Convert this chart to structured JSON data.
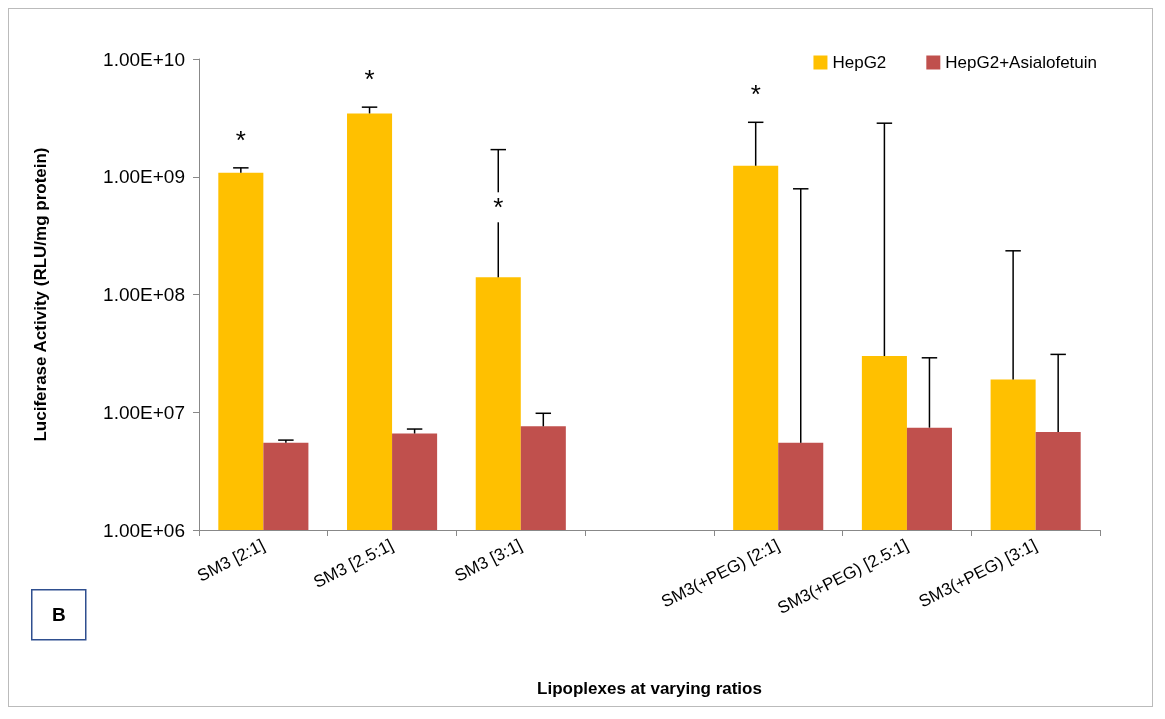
{
  "chart_data": {
    "type": "bar",
    "xlabel": "Lipoplexes at varying ratios",
    "ylabel": "Luciferase Activity (RLU/mg protein)",
    "categories": [
      "SM3 [2:1]",
      "SM3 [2.5:1]",
      "SM3 [3:1]",
      null,
      "SM3(+PEG) [2:1]",
      "SM3(+PEG) [2.5:1]",
      "SM3(+PEG) [3:1]"
    ],
    "series": [
      {
        "name": "HepG2",
        "color": "#ffc000",
        "values": [
          1080000000.0,
          3450000000.0,
          140000000.0,
          null,
          1240000000.0,
          30000000.0,
          19000000.0
        ],
        "errors": [
          [
            1080000000.0,
            1190000000.0
          ],
          [
            3450000000.0,
            3900000000.0
          ],
          [
            140000000.0,
            1700000000.0
          ],
          null,
          [
            1240000000.0,
            2900000000.0
          ],
          [
            30000000.0,
            2850000000.0
          ],
          [
            19000000.0,
            235000000.0
          ]
        ]
      },
      {
        "name": "HepG2+Asialofetuin",
        "color": "#c0504d",
        "values": [
          5500000.0,
          6600000.0,
          7600000.0,
          null,
          5500000.0,
          7400000.0,
          6800000.0
        ],
        "errors": [
          [
            5500000.0,
            5800000.0
          ],
          [
            6600000.0,
            7200000.0
          ],
          [
            7600000.0,
            9800000.0
          ],
          null,
          [
            5500000.0,
            790000000.0
          ],
          [
            7400000.0,
            29000000.0
          ],
          [
            6800000.0,
            31000000.0
          ]
        ]
      }
    ],
    "log": "y",
    "ylim": [
      1000000.0,
      10000000000.0
    ],
    "yticks": [
      {
        "value": 1000000.0,
        "label": "1.00E+06"
      },
      {
        "value": 10000000.0,
        "label": "1.00E+07"
      },
      {
        "value": 100000000.0,
        "label": "1.00E+08"
      },
      {
        "value": 1000000000.0,
        "label": "1.00E+09"
      },
      {
        "value": 10000000000.0,
        "label": "1.00E+10"
      }
    ],
    "grid": false,
    "legend": "top right",
    "annotations": [
      {
        "text": "*",
        "x": "SM3 [2:1]",
        "y": 1080000000.0
      },
      {
        "text": "*",
        "x": "SM3 [2.5:1]",
        "y": 3450000000.0
      },
      {
        "text": "*",
        "x": "SM3 [3:1]",
        "y": 140000000.0
      },
      {
        "text": "*",
        "x": "SM3(+PEG) [2:1]",
        "y": 1240000000.0
      },
      "B"
    ]
  }
}
